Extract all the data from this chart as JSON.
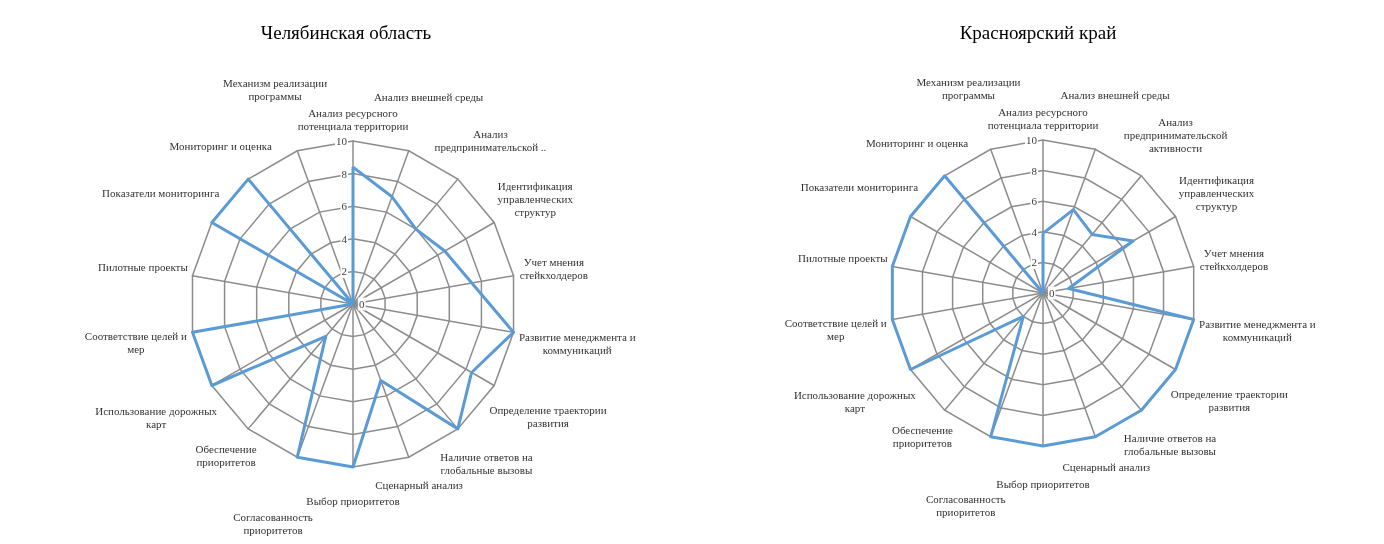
{
  "chart_data": [
    {
      "type": "radar",
      "title": "Челябинская область",
      "categories": [
        "Анализ ресурсного потенциала территории",
        "Анализ внешней среды",
        "Анализ предпринимательской ..",
        "Идентификация управленческих структур",
        "Учет мнения стейкхолдеров",
        "Развитие менеджмента и коммуникаций",
        "Определение траектории развития",
        "Наличие ответов на глобальные вызовы",
        "Сценарный анализ",
        "Выбор приоритетов",
        "Согласованность приоритетов",
        "Обеспечение приоритетов",
        "Использование дорожных карт",
        "Соответствие целей и мер",
        "Пилотные проекты",
        "Показатели мониторинга",
        "Мониторинг и оценка",
        "Механизм реализации программы"
      ],
      "series": [
        {
          "color": "#5b9bd5",
          "values": [
            8.4,
            7,
            6,
            6.5,
            7.4,
            10,
            8.4,
            10,
            5,
            10,
            10,
            2.6,
            10,
            10,
            0,
            10,
            10,
            0
          ]
        }
      ],
      "ylim": [
        0,
        10
      ],
      "yticks": [
        0,
        2,
        4,
        6,
        8,
        10
      ],
      "grid": true,
      "marker": "none"
    },
    {
      "type": "radar",
      "title": "Красноярский край",
      "categories": [
        "Анализ ресурсного потенциала территории",
        "Анализ внешней среды",
        "Анализ предпринимательской активности",
        "Идентификация управленческих структур",
        "Учет мнения стейкхолдеров",
        "Развитие менеджмента и коммуникаций",
        "Определение траектории развития",
        "Наличие ответов на глобальные вызовы",
        "Сценарный анализ",
        "Выбор приоритетов",
        "Согласованность приоритетов",
        "Обеспечение приоритетов",
        "Использование дорожных карт",
        "Соответствие целей и мер",
        "Пилотные проекты",
        "Показатели мониторинга",
        "Мониторинг и оценка",
        "Механизм реализации программы"
      ],
      "series": [
        {
          "color": "#5b9bd5",
          "values": [
            3.9,
            5.8,
            5,
            6.8,
            1.7,
            10,
            10,
            10,
            10,
            10,
            10,
            2,
            10,
            10,
            10,
            10,
            10,
            0
          ]
        }
      ],
      "ylim": [
        0,
        10
      ],
      "yticks": [
        0,
        2,
        4,
        6,
        8,
        10
      ],
      "grid": true,
      "marker": "none"
    }
  ]
}
